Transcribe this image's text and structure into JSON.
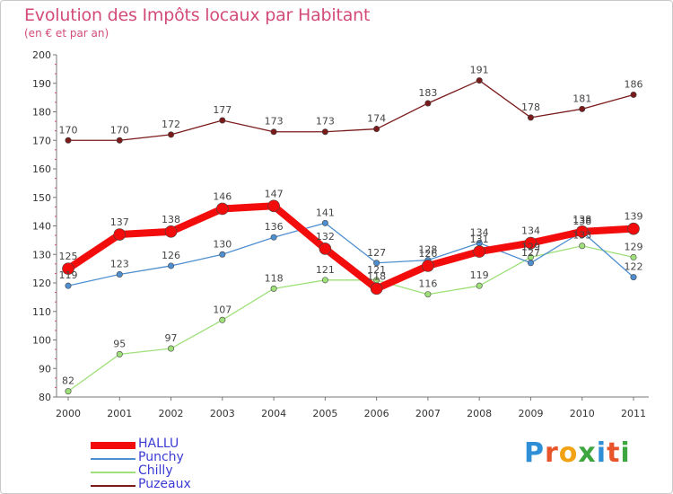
{
  "title": "Evolution des Impôts locaux par Habitant",
  "subtitle": "(en € et par an)",
  "brand": {
    "letters": [
      "P",
      "r",
      "o",
      "x",
      "i",
      "t",
      "i"
    ],
    "colors": [
      "#2e8fd6",
      "#e8552a",
      "#f2a215",
      "#3ea63e",
      "#2e8fd6",
      "#e8552a",
      "#3ea63e"
    ]
  },
  "chart_data": {
    "type": "line",
    "title": "Evolution des Impôts locaux par Habitant",
    "subtitle": "(en € et par an)",
    "xlabel": "",
    "ylabel": "",
    "x": [
      "2000",
      "2001",
      "2002",
      "2003",
      "2004",
      "2005",
      "2006",
      "2007",
      "2008",
      "2009",
      "2010",
      "2011"
    ],
    "yticks": [
      "80",
      "90",
      "100",
      "110",
      "120",
      "130",
      "140",
      "150",
      "160",
      "170",
      "180",
      "190",
      "200"
    ],
    "ylim": [
      80,
      200
    ],
    "grid": false,
    "legend_position": "bottom-left",
    "series": [
      {
        "name": "HALLU",
        "color": "#f20c0c",
        "values": [
          125,
          137,
          138,
          146,
          147,
          132,
          118,
          126,
          131,
          134,
          138,
          139
        ],
        "labels": [
          "125",
          "137",
          "138",
          "146",
          "147",
          "132",
          "118",
          "126",
          "131",
          "134",
          "138",
          "139"
        ]
      },
      {
        "name": "Punchy",
        "color": "#4f8fd0",
        "values": [
          119,
          123,
          126,
          130,
          136,
          141,
          127,
          128,
          134,
          127,
          138,
          122
        ],
        "labels": [
          "119",
          "123",
          "126",
          "130",
          "136",
          "141",
          "127",
          "128",
          "134",
          "127",
          "138",
          "122"
        ]
      },
      {
        "name": "Chilly",
        "color": "#9fe07a",
        "values": [
          82,
          95,
          97,
          107,
          118,
          121,
          121,
          116,
          119,
          129,
          133,
          129
        ],
        "labels": [
          "82",
          "95",
          "97",
          "107",
          "118",
          "121",
          "121",
          "116",
          "119",
          "129",
          "133",
          "129"
        ]
      },
      {
        "name": "Puzeaux",
        "color": "#7a1a1a",
        "values": [
          170,
          170,
          172,
          177,
          173,
          173,
          174,
          183,
          191,
          178,
          181,
          186
        ],
        "labels": [
          "170",
          "170",
          "172",
          "177",
          "173",
          "173",
          "174",
          "183",
          "191",
          "178",
          "181",
          "186"
        ]
      }
    ]
  }
}
